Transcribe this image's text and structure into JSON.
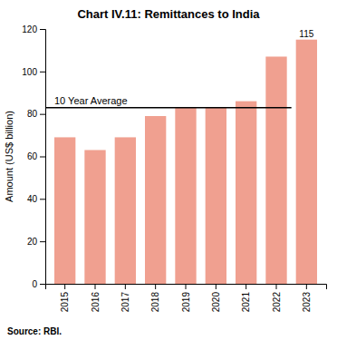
{
  "chart_data": {
    "type": "bar",
    "title": "Chart IV.11: Remittances to India",
    "categories": [
      "2015",
      "2016",
      "2017",
      "2018",
      "2019",
      "2020",
      "2021",
      "2022",
      "2023"
    ],
    "values": [
      69,
      63,
      69,
      79,
      83,
      83,
      86,
      107,
      115
    ],
    "color": "#F0A090",
    "ylabel": "Amount (US$ billion)",
    "ylim": [
      0,
      120
    ],
    "yticks": [
      0,
      20,
      40,
      60,
      80,
      100,
      120
    ],
    "grid": false,
    "reference_line": {
      "value": 83,
      "label": "10 Year Average"
    },
    "annotations": [
      {
        "text": "115",
        "x": "2023",
        "y": 115
      }
    ],
    "source": "Source: RBI."
  }
}
